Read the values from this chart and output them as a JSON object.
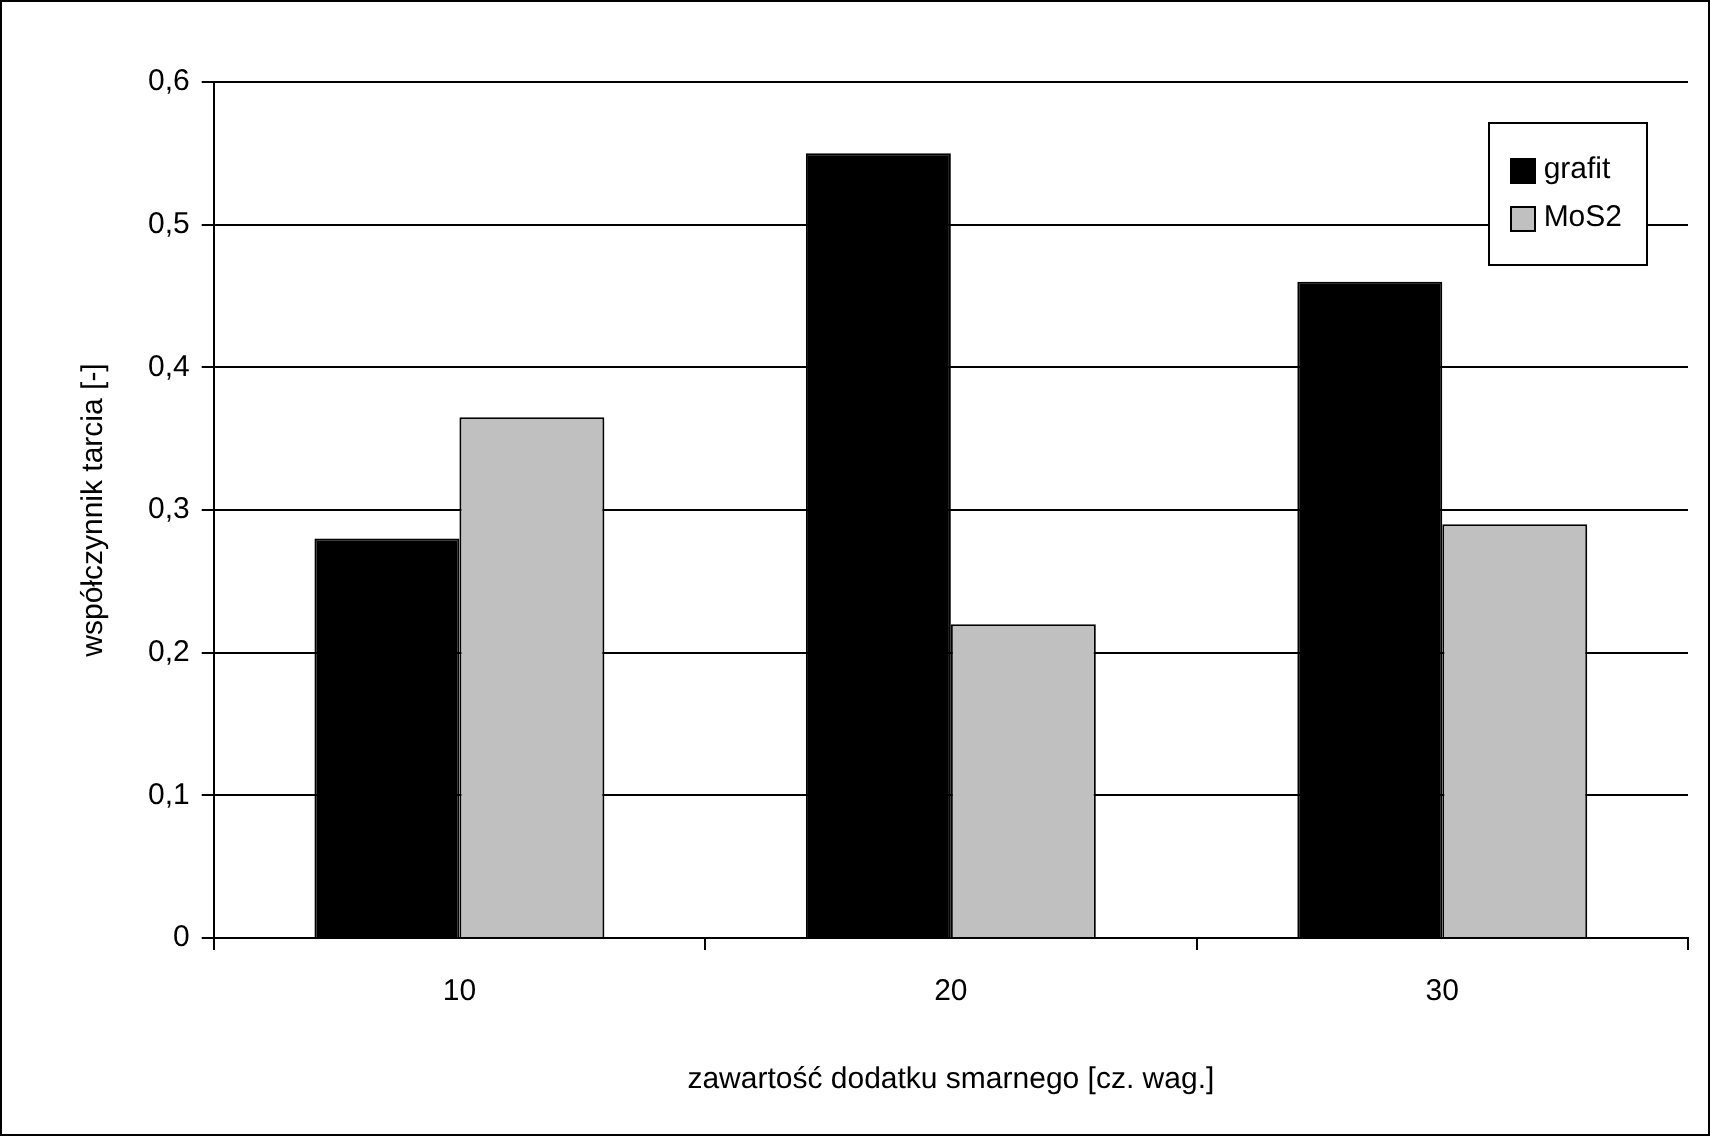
{
  "chart_data": {
    "type": "bar",
    "xlabel": "zawartość dodatku smarnego [cz. wag.]",
    "ylabel": "współczynnik tarcia [-]",
    "categories": [
      "10",
      "20",
      "30"
    ],
    "series": [
      {
        "name": "grafit",
        "color": "#000000",
        "values": [
          0.28,
          0.55,
          0.46
        ]
      },
      {
        "name": "MoS2",
        "color": "#c0c0c0",
        "values": [
          0.365,
          0.22,
          0.29
        ]
      }
    ],
    "ylim": [
      0,
      0.6
    ],
    "yticks": [
      0,
      {
        "value": 0.1,
        "label": "0,1"
      },
      {
        "value": 0.2,
        "label": "0,2"
      },
      {
        "value": 0.3,
        "label": "0,3"
      },
      {
        "value": 0.4,
        "label": "0,4"
      },
      {
        "value": 0.5,
        "label": "0,5"
      },
      {
        "value": 0.6,
        "label": "0,6"
      }
    ],
    "grid": "y",
    "legend": "top right"
  }
}
